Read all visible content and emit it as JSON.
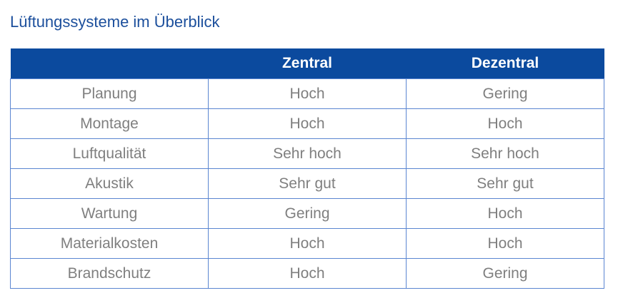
{
  "title": "Lüftungssysteme im Überblick",
  "colors": {
    "header_bg": "#0b4a9e",
    "title": "#1c4f9c",
    "border": "#5b86d1",
    "cell_text": "#7f7f7f"
  },
  "table": {
    "headers": [
      "",
      "Zentral",
      "Dezentral"
    ],
    "rows": [
      [
        "Planung",
        "Hoch",
        "Gering"
      ],
      [
        "Montage",
        "Hoch",
        "Hoch"
      ],
      [
        "Luftqualität",
        "Sehr hoch",
        "Sehr hoch"
      ],
      [
        "Akustik",
        "Sehr gut",
        "Sehr gut"
      ],
      [
        "Wartung",
        "Gering",
        "Hoch"
      ],
      [
        "Materialkosten",
        "Hoch",
        "Hoch"
      ],
      [
        "Brandschutz",
        "Hoch",
        "Gering"
      ]
    ]
  }
}
